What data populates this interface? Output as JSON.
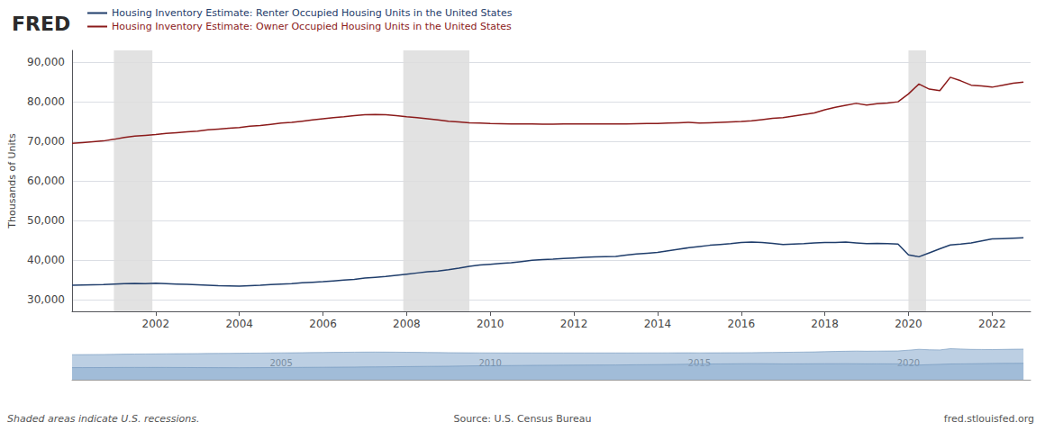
{
  "chart_data": {
    "type": "line",
    "title": "FRED",
    "ylabel": "Thousands of Units",
    "x": [
      2000.0,
      2000.25,
      2000.5,
      2000.75,
      2001.0,
      2001.25,
      2001.5,
      2001.75,
      2002.0,
      2002.25,
      2002.5,
      2002.75,
      2003.0,
      2003.25,
      2003.5,
      2003.75,
      2004.0,
      2004.25,
      2004.5,
      2004.75,
      2005.0,
      2005.25,
      2005.5,
      2005.75,
      2006.0,
      2006.25,
      2006.5,
      2006.75,
      2007.0,
      2007.25,
      2007.5,
      2007.75,
      2008.0,
      2008.25,
      2008.5,
      2008.75,
      2009.0,
      2009.25,
      2009.5,
      2009.75,
      2010.0,
      2010.25,
      2010.5,
      2010.75,
      2011.0,
      2011.25,
      2011.5,
      2011.75,
      2012.0,
      2012.25,
      2012.5,
      2012.75,
      2013.0,
      2013.25,
      2013.5,
      2013.75,
      2014.0,
      2014.25,
      2014.5,
      2014.75,
      2015.0,
      2015.25,
      2015.5,
      2015.75,
      2016.0,
      2016.25,
      2016.5,
      2016.75,
      2017.0,
      2017.25,
      2017.5,
      2017.75,
      2018.0,
      2018.25,
      2018.5,
      2018.75,
      2019.0,
      2019.25,
      2019.5,
      2019.75,
      2020.0,
      2020.25,
      2020.5,
      2020.75,
      2021.0,
      2021.25,
      2021.5,
      2021.75,
      2022.0,
      2022.25,
      2022.5,
      2022.75
    ],
    "series": [
      {
        "name": "Housing Inventory Estimate: Renter Occupied Housing Units in the United States",
        "color": "#1f3d6b",
        "values": [
          33600,
          33650,
          33700,
          33750,
          33900,
          34000,
          34050,
          34000,
          34100,
          34000,
          33900,
          33800,
          33700,
          33600,
          33500,
          33450,
          33400,
          33500,
          33600,
          33750,
          33900,
          34000,
          34200,
          34350,
          34500,
          34700,
          34900,
          35100,
          35400,
          35600,
          35800,
          36100,
          36400,
          36700,
          37000,
          37200,
          37500,
          37900,
          38400,
          38700,
          38900,
          39100,
          39300,
          39600,
          39900,
          40100,
          40200,
          40350,
          40500,
          40650,
          40750,
          40850,
          40900,
          41200,
          41500,
          41700,
          41900,
          42300,
          42700,
          43100,
          43400,
          43700,
          43900,
          44100,
          44400,
          44500,
          44400,
          44200,
          43900,
          44000,
          44100,
          44300,
          44400,
          44400,
          44500,
          44300,
          44100,
          44200,
          44100,
          44000,
          41300,
          40800,
          41800,
          42800,
          43800,
          44000,
          44300,
          44800,
          45300,
          45400,
          45500,
          45600
        ]
      },
      {
        "name": "Housing Inventory Estimate: Owner Occupied Housing Units in the United States",
        "color": "#8b1a1a",
        "values": [
          69500,
          69700,
          69900,
          70100,
          70500,
          71000,
          71300,
          71500,
          71700,
          72000,
          72200,
          72400,
          72600,
          72900,
          73100,
          73300,
          73500,
          73800,
          74000,
          74300,
          74600,
          74800,
          75100,
          75400,
          75700,
          76000,
          76200,
          76500,
          76700,
          76800,
          76700,
          76500,
          76200,
          76000,
          75700,
          75400,
          75100,
          74900,
          74700,
          74600,
          74500,
          74450,
          74400,
          74400,
          74400,
          74350,
          74350,
          74400,
          74400,
          74400,
          74400,
          74400,
          74400,
          74400,
          74450,
          74500,
          74500,
          74600,
          74700,
          74800,
          74600,
          74700,
          74800,
          74900,
          75000,
          75200,
          75500,
          75800,
          76000,
          76400,
          76800,
          77200,
          78000,
          78600,
          79100,
          79600,
          79200,
          79500,
          79700,
          80000,
          82000,
          84500,
          83200,
          82800,
          86200,
          85300,
          84200,
          84000,
          83700,
          84200,
          84700,
          85000
        ]
      }
    ],
    "xlim": [
      2000.0,
      2022.92
    ],
    "xticks": [
      2002,
      2004,
      2006,
      2008,
      2010,
      2012,
      2014,
      2016,
      2018,
      2020,
      2022
    ],
    "ylim": [
      27000,
      93000
    ],
    "yticks": [
      {
        "value": 30000,
        "label": "30,000"
      },
      {
        "value": 40000,
        "label": "40,000"
      },
      {
        "value": 50000,
        "label": "50,000"
      },
      {
        "value": 60000,
        "label": "60,000"
      },
      {
        "value": 70000,
        "label": "70,000"
      },
      {
        "value": 80000,
        "label": "80,000"
      },
      {
        "value": 90000,
        "label": "90,000"
      }
    ],
    "grid": true,
    "legend": "upper left",
    "recessions": {
      "color": "#dddddd",
      "spans": [
        [
          2001.0,
          2001.92
        ],
        [
          2007.92,
          2009.5
        ],
        [
          2020.0,
          2020.42
        ]
      ]
    },
    "annotations": [
      {
        "text": "Shaded areas indicate U.S. recessions."
      },
      {
        "text": "Source: U.S. Census Bureau"
      },
      {
        "text": "fred.stlouisfed.org"
      },
      {
        "text": "2005",
        "x": 2005
      },
      {
        "text": "2010",
        "x": 2010
      },
      {
        "text": "2015",
        "x": 2015
      },
      {
        "text": "2020",
        "x": 2020
      }
    ]
  }
}
